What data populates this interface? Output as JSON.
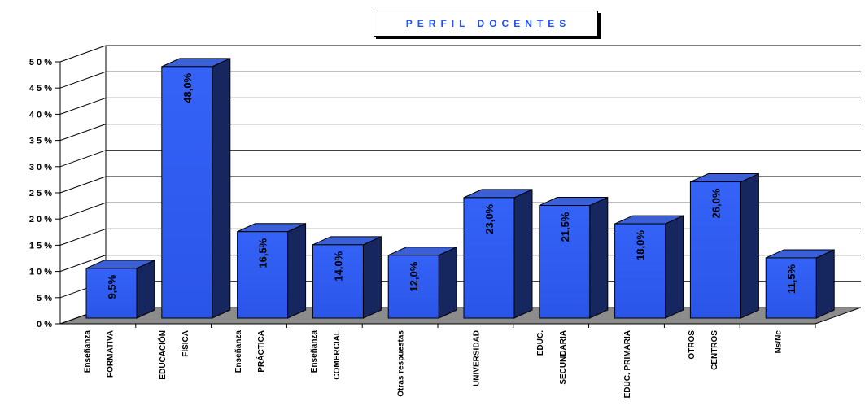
{
  "chart_data": {
    "type": "bar",
    "title": "PERFIL DOCENTES",
    "categories": [
      [
        "Enseñanza",
        "FORMATIVA"
      ],
      [
        "EDUCACIÓN",
        "FÍSICA"
      ],
      [
        "Enseñanza",
        "PRÁCTICA"
      ],
      [
        "Enseñanza",
        "COMERCIAL"
      ],
      [
        "Otras respuestas"
      ],
      [
        "UNIVERSIDAD"
      ],
      [
        "EDUC.",
        "SECUNDARIA"
      ],
      [
        "EDUC. PRIMARIA"
      ],
      [
        "OTROS",
        "CENTROS"
      ],
      [
        "Ns/Nc"
      ]
    ],
    "values": [
      9.5,
      48.0,
      16.5,
      14.0,
      12.0,
      23.0,
      21.5,
      18.0,
      26.0,
      11.5
    ],
    "data_labels": [
      "9,5%",
      "48,0%",
      "16,5%",
      "14,0%",
      "12,0%",
      "23,0%",
      "21,5%",
      "18,0%",
      "26,0%",
      "11,5%"
    ],
    "y_tick_labels": [
      "0 %",
      "5 %",
      "1 0 %",
      "1 5 %",
      "2 0 %",
      "2 5 %",
      "3 0 %",
      "3 5 %",
      "4 0 %",
      "4 5 %",
      "5 0 %"
    ],
    "ylim": [
      0,
      50
    ],
    "grid": true,
    "style": "3d-column",
    "colors": {
      "bar_front": "#2f5cf2",
      "bar_top": "#3a5fd6",
      "bar_side": "#16265e",
      "floor": "#8c8c8c",
      "title_text": "#1f4fff"
    }
  }
}
